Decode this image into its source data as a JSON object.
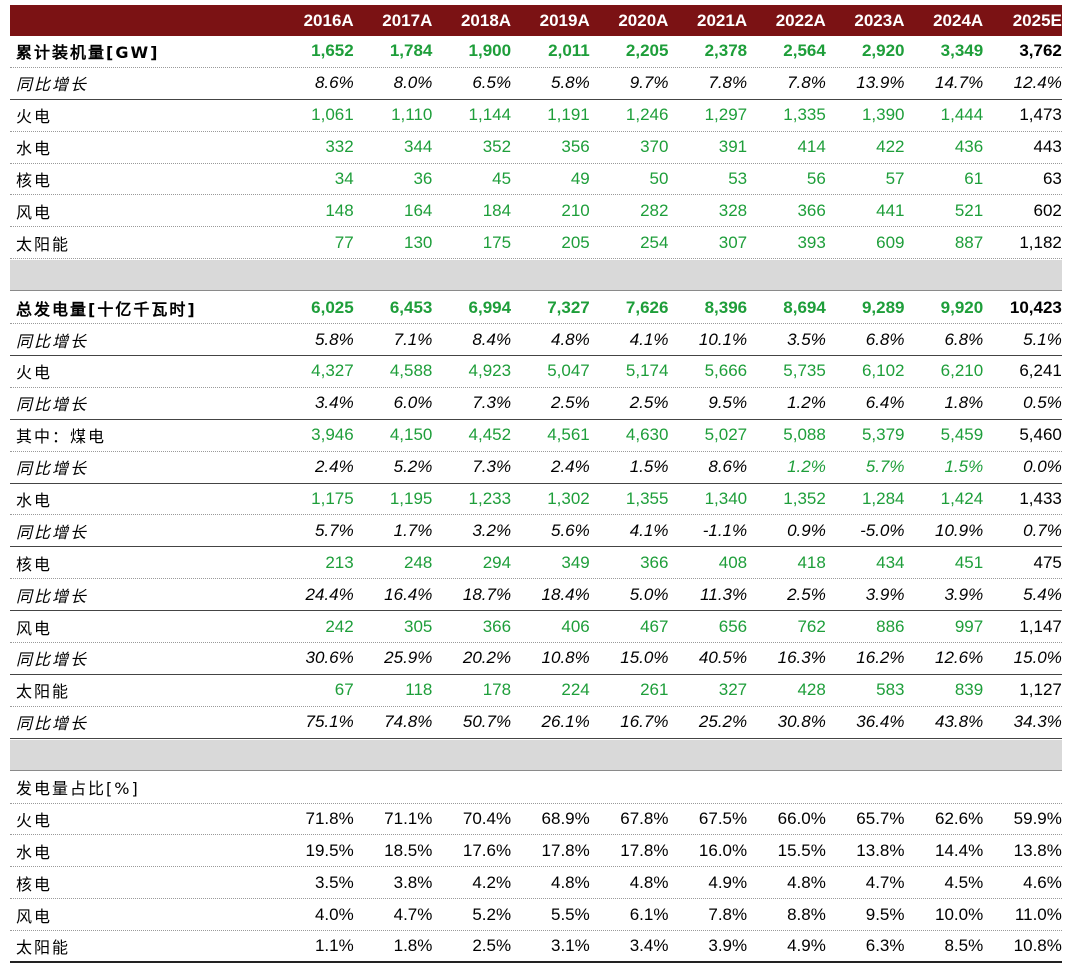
{
  "colors": {
    "header_bg": "#7b1214",
    "actual_value": "#1e9e3a",
    "estimate_value": "#000000",
    "spacer": "#d9d9d9"
  },
  "years": [
    "2016A",
    "2017A",
    "2018A",
    "2019A",
    "2020A",
    "2021A",
    "2022A",
    "2023A",
    "2024A",
    "2025E"
  ],
  "sections": [
    {
      "rows": [
        {
          "label": "累计装机量[GW]",
          "style": "bold",
          "values": [
            "1,652",
            "1,784",
            "1,900",
            "2,011",
            "2,205",
            "2,378",
            "2,564",
            "2,920",
            "3,349",
            "3,762"
          ]
        },
        {
          "label": "同比增长",
          "style": "italic",
          "values": [
            "8.6%",
            "8.0%",
            "6.5%",
            "5.8%",
            "9.7%",
            "7.8%",
            "7.8%",
            "13.9%",
            "14.7%",
            "12.4%"
          ]
        },
        {
          "label": "火电",
          "style": "plain",
          "values": [
            "1,061",
            "1,110",
            "1,144",
            "1,191",
            "1,246",
            "1,297",
            "1,335",
            "1,390",
            "1,444",
            "1,473"
          ]
        },
        {
          "label": "水电",
          "style": "plain",
          "values": [
            "332",
            "344",
            "352",
            "356",
            "370",
            "391",
            "414",
            "422",
            "436",
            "443"
          ]
        },
        {
          "label": "核电",
          "style": "plain",
          "values": [
            "34",
            "36",
            "45",
            "49",
            "50",
            "53",
            "56",
            "57",
            "61",
            "63"
          ]
        },
        {
          "label": "风电",
          "style": "plain",
          "values": [
            "148",
            "164",
            "184",
            "210",
            "282",
            "328",
            "366",
            "441",
            "521",
            "602"
          ]
        },
        {
          "label": "太阳能",
          "style": "plain",
          "values": [
            "77",
            "130",
            "175",
            "205",
            "254",
            "307",
            "393",
            "609",
            "887",
            "1,182"
          ]
        }
      ]
    },
    {
      "rows": [
        {
          "label": "总发电量[十亿千瓦时]",
          "style": "bold",
          "values": [
            "6,025",
            "6,453",
            "6,994",
            "7,327",
            "7,626",
            "8,396",
            "8,694",
            "9,289",
            "9,920",
            "10,423"
          ]
        },
        {
          "label": "同比增长",
          "style": "italic",
          "values": [
            "5.8%",
            "7.1%",
            "8.4%",
            "4.8%",
            "4.1%",
            "10.1%",
            "3.5%",
            "6.8%",
            "6.8%",
            "5.1%"
          ]
        },
        {
          "label": "火电",
          "style": "plain",
          "values": [
            "4,327",
            "4,588",
            "4,923",
            "5,047",
            "5,174",
            "5,666",
            "5,735",
            "6,102",
            "6,210",
            "6,241"
          ]
        },
        {
          "label": "同比增长",
          "style": "italic",
          "values": [
            "3.4%",
            "6.0%",
            "7.3%",
            "2.5%",
            "2.5%",
            "9.5%",
            "1.2%",
            "6.4%",
            "1.8%",
            "0.5%"
          ]
        },
        {
          "label": "其中：煤电",
          "style": "plain",
          "values": [
            "3,946",
            "4,150",
            "4,452",
            "4,561",
            "4,630",
            "5,027",
            "5,088",
            "5,379",
            "5,459",
            "5,460"
          ]
        },
        {
          "label": "同比增长",
          "style": "italic",
          "green_from": 6,
          "values": [
            "2.4%",
            "5.2%",
            "7.3%",
            "2.4%",
            "1.5%",
            "8.6%",
            "1.2%",
            "5.7%",
            "1.5%",
            "0.0%"
          ]
        },
        {
          "label": "水电",
          "style": "plain",
          "values": [
            "1,175",
            "1,195",
            "1,233",
            "1,302",
            "1,355",
            "1,340",
            "1,352",
            "1,284",
            "1,424",
            "1,433"
          ]
        },
        {
          "label": "同比增长",
          "style": "italic",
          "values": [
            "5.7%",
            "1.7%",
            "3.2%",
            "5.6%",
            "4.1%",
            "-1.1%",
            "0.9%",
            "-5.0%",
            "10.9%",
            "0.7%"
          ]
        },
        {
          "label": "核电",
          "style": "plain",
          "values": [
            "213",
            "248",
            "294",
            "349",
            "366",
            "408",
            "418",
            "434",
            "451",
            "475"
          ]
        },
        {
          "label": "同比增长",
          "style": "italic",
          "values": [
            "24.4%",
            "16.4%",
            "18.7%",
            "18.4%",
            "5.0%",
            "11.3%",
            "2.5%",
            "3.9%",
            "3.9%",
            "5.4%"
          ]
        },
        {
          "label": "风电",
          "style": "plain",
          "values": [
            "242",
            "305",
            "366",
            "406",
            "467",
            "656",
            "762",
            "886",
            "997",
            "1,147"
          ]
        },
        {
          "label": "同比增长",
          "style": "italic",
          "values": [
            "30.6%",
            "25.9%",
            "20.2%",
            "10.8%",
            "15.0%",
            "40.5%",
            "16.3%",
            "16.2%",
            "12.6%",
            "15.0%"
          ]
        },
        {
          "label": "太阳能",
          "style": "plain",
          "values": [
            "67",
            "118",
            "178",
            "224",
            "261",
            "327",
            "428",
            "583",
            "839",
            "1,127"
          ]
        },
        {
          "label": "同比增长",
          "style": "italic",
          "values": [
            "75.1%",
            "74.8%",
            "50.7%",
            "26.1%",
            "16.7%",
            "25.2%",
            "30.8%",
            "36.4%",
            "43.8%",
            "34.3%"
          ]
        }
      ]
    },
    {
      "rows": [
        {
          "label": "发电量占比[%]",
          "style": "title",
          "values": [
            "",
            "",
            "",
            "",
            "",
            "",
            "",
            "",
            "",
            ""
          ]
        },
        {
          "label": "火电",
          "style": "pct",
          "values": [
            "71.8%",
            "71.1%",
            "70.4%",
            "68.9%",
            "67.8%",
            "67.5%",
            "66.0%",
            "65.7%",
            "62.6%",
            "59.9%"
          ]
        },
        {
          "label": "水电",
          "style": "pct",
          "values": [
            "19.5%",
            "18.5%",
            "17.6%",
            "17.8%",
            "17.8%",
            "16.0%",
            "15.5%",
            "13.8%",
            "14.4%",
            "13.8%"
          ]
        },
        {
          "label": "核电",
          "style": "pct",
          "values": [
            "3.5%",
            "3.8%",
            "4.2%",
            "4.8%",
            "4.8%",
            "4.9%",
            "4.8%",
            "4.7%",
            "4.5%",
            "4.6%"
          ]
        },
        {
          "label": "风电",
          "style": "pct",
          "values": [
            "4.0%",
            "4.7%",
            "5.2%",
            "5.5%",
            "6.1%",
            "7.8%",
            "8.8%",
            "9.5%",
            "10.0%",
            "11.0%"
          ]
        },
        {
          "label": "太阳能",
          "style": "pct",
          "values": [
            "1.1%",
            "1.8%",
            "2.5%",
            "3.1%",
            "3.4%",
            "3.9%",
            "4.9%",
            "6.3%",
            "8.5%",
            "10.8%"
          ]
        }
      ]
    }
  ]
}
